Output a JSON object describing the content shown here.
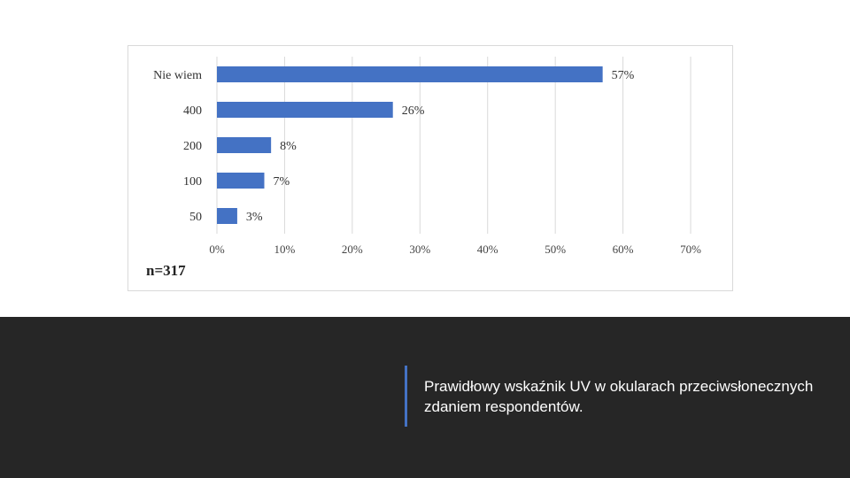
{
  "chart_data": {
    "type": "bar",
    "orientation": "horizontal",
    "categories": [
      "Nie wiem",
      "400",
      "200",
      "100",
      "50"
    ],
    "values": [
      57,
      26,
      8,
      7,
      3
    ],
    "value_labels": [
      "57%",
      "26%",
      "8%",
      "7%",
      "3%"
    ],
    "xticks": [
      "0%",
      "10%",
      "20%",
      "30%",
      "40%",
      "50%",
      "60%",
      "70%"
    ],
    "xlim": [
      0,
      70
    ],
    "grid": "vertical",
    "bar_color": "#4472c4",
    "title": "",
    "xlabel": "",
    "ylabel": ""
  },
  "note": "n=317",
  "caption": "Prawidłowy wskaźnik UV w okularach przeciwsłonecznych zdaniem respondentów.",
  "colors": {
    "accent": "#4472c4",
    "footer_bg": "#262626"
  }
}
